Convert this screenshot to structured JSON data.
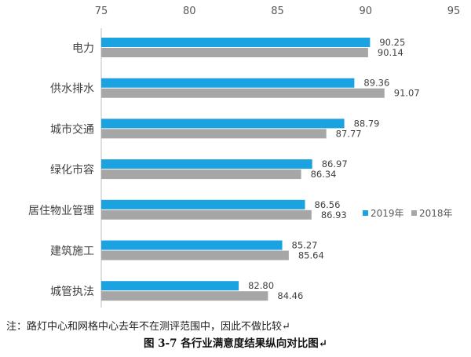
{
  "chart_data": {
    "type": "bar",
    "orientation": "horizontal",
    "categories": [
      "电力",
      "供水排水",
      "城市交通",
      "绿化市容",
      "居住物业管理",
      "建筑施工",
      "城管执法"
    ],
    "series": [
      {
        "name": "2019年",
        "color": "#1aa3e0",
        "values": [
          90.25,
          89.36,
          88.79,
          86.97,
          86.56,
          85.27,
          82.8
        ],
        "labels": [
          "90.25",
          "89.36",
          "88.79",
          "86.97",
          "86.56",
          "85.27",
          "82.80"
        ]
      },
      {
        "name": "2018年",
        "color": "#a6a6a6",
        "values": [
          90.14,
          91.07,
          87.77,
          86.34,
          86.93,
          85.64,
          84.46
        ],
        "labels": [
          "90.14",
          "91.07",
          "87.77",
          "86.34",
          "86.93",
          "85.64",
          "84.46"
        ]
      }
    ],
    "xlim": [
      75,
      95
    ],
    "x_ticks": [
      "75",
      "80",
      "85",
      "90",
      "95"
    ],
    "axis_position": "top",
    "grid": false,
    "legend_position": "right"
  },
  "note": "注：路灯中心和网格中心去年不在测评范围中，因此不做比较↵",
  "caption": "图 3-7 各行业满意度结果纵向对比图↵"
}
